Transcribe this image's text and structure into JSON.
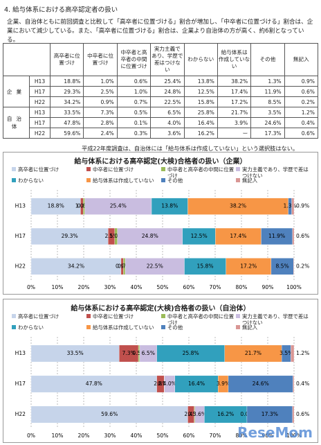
{
  "heading": "4. 給与体系における高卒認定者の扱い",
  "paragraph": "企業、自治体ともに前回調査と比較して「高卒者に位置づける」割合が増加し、「中卒者に位置づける」割合は、企業において減少している。また、「高卒者に位置づける」割合は、企業より自治体の方が高く、約6割となっている。",
  "table": {
    "header": [
      "高卒者に位置づけ",
      "中卒者に位置づけ",
      "中卒者と高卒者の中間に位置づけ",
      "実力主義であり、学歴で差はつけない",
      "わからない",
      "給与体系は作成していない",
      "その他",
      "無記入"
    ],
    "groups": [
      {
        "label": "企業",
        "rows": [
          {
            "year": "H13",
            "cells": [
              "18.8%",
              "1.0%",
              "0.6%",
              "25.4%",
              "13.8%",
              "38.2%",
              "1.3%",
              "0.9%"
            ]
          },
          {
            "year": "H17",
            "cells": [
              "29.3%",
              "2.5%",
              "1.0%",
              "24.8%",
              "12.5%",
              "17.4%",
              "11.9%",
              "0.6%"
            ]
          },
          {
            "year": "H22",
            "cells": [
              "34.2%",
              "0.9%",
              "0.7%",
              "22.5%",
              "15.8%",
              "17.2%",
              "8.5%",
              "0.2%"
            ]
          }
        ]
      },
      {
        "label": "自治体",
        "rows": [
          {
            "year": "H13",
            "cells": [
              "33.5%",
              "7.3%",
              "0.5%",
              "6.5%",
              "25.8%",
              "21.7%",
              "3.5%",
              "1.2%"
            ]
          },
          {
            "year": "H17",
            "cells": [
              "47.8%",
              "2.8%",
              "0.1%",
              "4.0%",
              "16.4%",
              "3.9%",
              "24.6%",
              "0.4%"
            ]
          },
          {
            "year": "H22",
            "cells": [
              "59.6%",
              "2.4%",
              "0.3%",
              "3.6%",
              "16.2%",
              "ー",
              "17.3%",
              "0.6%"
            ]
          }
        ]
      }
    ]
  },
  "note": "平成22年度調査は、自治体には「給与体系は作成していない」という選択肢はない。",
  "watermark": "ReseMom",
  "chart_data": [
    {
      "type": "stacked-bar-horizontal",
      "title": "給与体系における高卒認定(大検)合格者の扱い（企業）",
      "categories": [
        "H13",
        "H17",
        "H22"
      ],
      "xlim": [
        0,
        100
      ],
      "xticks": [
        {
          "value": 0,
          "label": "0%"
        },
        {
          "value": 10,
          "label": "10%"
        },
        {
          "value": 20,
          "label": "20%"
        },
        {
          "value": 30,
          "label": "30%"
        },
        {
          "value": 40,
          "label": "40%"
        },
        {
          "value": 50,
          "label": "50%"
        },
        {
          "value": 60,
          "label": "60%"
        },
        {
          "value": 70,
          "label": "70%"
        },
        {
          "value": 80,
          "label": "80%"
        },
        {
          "value": 90,
          "label": "90%"
        },
        {
          "value": 100,
          "label": "100%"
        }
      ],
      "grid": true,
      "series": [
        {
          "name": "高卒者に位置づけ",
          "color": "#c6d4ea",
          "values": [
            18.8,
            29.3,
            34.2
          ],
          "value_labels": [
            "18.8%",
            "29.3%",
            "34.2%"
          ]
        },
        {
          "name": "中卒者に位置づけ",
          "color": "#c0504d",
          "values": [
            1.0,
            2.5,
            0.9
          ],
          "value_labels": [
            "1.0%",
            "2.5%",
            "0.9%"
          ]
        },
        {
          "name": "中卒者と高卒者の中間に位置づけ",
          "color": "#9bbb59",
          "values": [
            0.6,
            1.0,
            0.7
          ],
          "value_labels": [
            "0.6%",
            "1.0%",
            "0.7%"
          ]
        },
        {
          "name": "実力主義であり、学歴で差はつけない",
          "color": "#c9bde0",
          "values": [
            25.4,
            24.8,
            22.5
          ],
          "value_labels": [
            "25.4%",
            "24.8%",
            "22.5%"
          ]
        },
        {
          "name": "わからない",
          "color": "#31a0bd",
          "values": [
            13.8,
            12.5,
            15.8
          ],
          "value_labels": [
            "13.8%",
            "12.5%",
            "15.8%"
          ]
        },
        {
          "name": "給与体系は作成していない",
          "color": "#f79646",
          "values": [
            38.2,
            17.4,
            17.2
          ],
          "value_labels": [
            "38.2%",
            "17.4%",
            "17.2%"
          ]
        },
        {
          "name": "その他",
          "color": "#4f81bd",
          "values": [
            1.3,
            11.9,
            8.5
          ],
          "value_labels": [
            "1.3%",
            "11.9%",
            "8.5%"
          ]
        },
        {
          "name": "無記入",
          "color": "#d99694",
          "values": [
            0.9,
            0.6,
            0.2
          ],
          "value_labels": [
            "0.9%",
            "0.6%",
            "0.2%"
          ]
        }
      ]
    },
    {
      "type": "stacked-bar-horizontal",
      "title": "給与体系における高卒認定(大検)合格者の扱い（自治体）",
      "categories": [
        "H13",
        "H17",
        "H22"
      ],
      "xlim": [
        0,
        100
      ],
      "xticks": [
        {
          "value": 0,
          "label": "0%"
        },
        {
          "value": 10,
          "label": "10%"
        },
        {
          "value": 20,
          "label": "20%"
        },
        {
          "value": 30,
          "label": "30%"
        },
        {
          "value": 40,
          "label": "40%"
        },
        {
          "value": 50,
          "label": "50%"
        },
        {
          "value": 60,
          "label": "60%"
        },
        {
          "value": 70,
          "label": "70%"
        },
        {
          "value": 80,
          "label": "80%"
        },
        {
          "value": 90,
          "label": "90%"
        },
        {
          "value": 100,
          "label": "100%"
        }
      ],
      "grid": true,
      "series": [
        {
          "name": "高卒者に位置づけ",
          "color": "#c6d4ea",
          "values": [
            33.5,
            47.8,
            59.6
          ],
          "value_labels": [
            "33.5%",
            "47.8%",
            "59.6%"
          ]
        },
        {
          "name": "中卒者に位置づけ",
          "color": "#c0504d",
          "values": [
            7.3,
            2.8,
            2.4
          ],
          "value_labels": [
            "7.3%",
            "2.8%",
            "2.4%"
          ]
        },
        {
          "name": "中卒者と高卒者の中間に位置づけ",
          "color": "#9bbb59",
          "values": [
            0.5,
            0.1,
            0.3
          ],
          "value_labels": [
            "0.5%",
            "0.1%",
            "0.3%"
          ]
        },
        {
          "name": "実力主義であり、学歴で差はつけない",
          "color": "#c9bde0",
          "values": [
            6.5,
            4.0,
            3.6
          ],
          "value_labels": [
            "6.5%",
            "4.0%",
            "3.6%"
          ]
        },
        {
          "name": "わからない",
          "color": "#31a0bd",
          "values": [
            25.8,
            16.4,
            16.2
          ],
          "value_labels": [
            "25.8%",
            "16.4%",
            "16.2%"
          ]
        },
        {
          "name": "給与体系は作成していない",
          "color": "#f79646",
          "values": [
            21.7,
            3.9,
            0.0
          ],
          "value_labels": [
            "21.7%",
            "3.9%",
            "0.0%"
          ]
        },
        {
          "name": "その他",
          "color": "#4f81bd",
          "values": [
            3.5,
            24.6,
            17.3
          ],
          "value_labels": [
            "3.5%",
            "24.6%",
            "17.3%"
          ]
        },
        {
          "name": "無記入",
          "color": "#d99694",
          "values": [
            1.2,
            0.4,
            0.6
          ],
          "value_labels": [
            "1.2%",
            "0.4%",
            "0.6%"
          ]
        }
      ]
    }
  ]
}
